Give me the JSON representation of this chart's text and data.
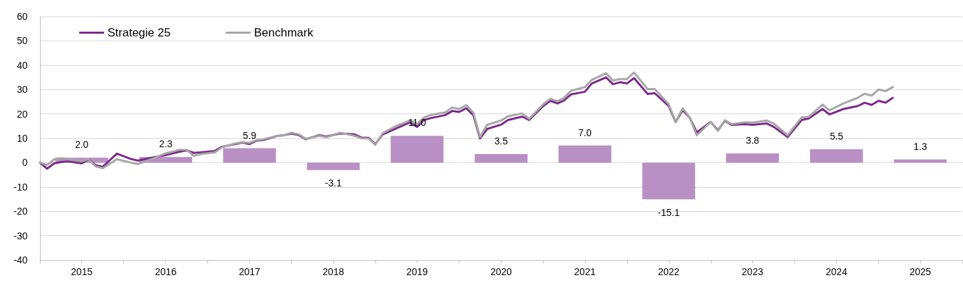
{
  "chart_data": {
    "type": "bar",
    "xlim": [
      "2014-12",
      "2025-12"
    ],
    "xticks": [
      {
        "value": "2014-12",
        "label": null
      },
      {
        "value": "2015-06",
        "label": "2015"
      },
      {
        "value": "2015-12",
        "label": null
      },
      {
        "value": "2016-06",
        "label": "2016"
      },
      {
        "value": "2016-12",
        "label": null
      },
      {
        "value": "2017-06",
        "label": "2017"
      },
      {
        "value": "2017-12",
        "label": null
      },
      {
        "value": "2018-06",
        "label": "2018"
      },
      {
        "value": "2018-12",
        "label": null
      },
      {
        "value": "2019-06",
        "label": "2019"
      },
      {
        "value": "2019-12",
        "label": null
      },
      {
        "value": "2020-06",
        "label": "2020"
      },
      {
        "value": "2020-12",
        "label": null
      },
      {
        "value": "2021-06",
        "label": "2021"
      },
      {
        "value": "2021-12",
        "label": null
      },
      {
        "value": "2022-06",
        "label": "2022"
      },
      {
        "value": "2022-12",
        "label": null
      },
      {
        "value": "2023-06",
        "label": "2023"
      },
      {
        "value": "2023-12",
        "label": null
      },
      {
        "value": "2024-06",
        "label": "2024"
      },
      {
        "value": "2024-12",
        "label": null
      },
      {
        "value": "2025-06",
        "label": "2025"
      },
      {
        "value": "2025-12",
        "label": null
      }
    ],
    "ylim": [
      -40,
      60
    ],
    "yticks": [
      -40,
      -30,
      -20,
      -10,
      0,
      10,
      20,
      30,
      40,
      50,
      60
    ],
    "grid": "y",
    "legend": "top left",
    "marker": "none",
    "line_style": "solid",
    "series": [
      {
        "color": "#b990c4",
        "x": [
          "2015-06",
          "2016-06",
          "2017-06",
          "2018-06",
          "2019-06",
          "2020-06",
          "2021-06",
          "2022-06",
          "2023-06",
          "2024-06",
          "2025-06"
        ],
        "values": [
          2.0,
          2.3,
          5.9,
          -3.1,
          11.0,
          3.5,
          7.0,
          -15.1,
          3.8,
          5.5,
          1.3
        ],
        "value_labels": [
          "2.0",
          "2.3",
          "5.9",
          "-3.1",
          "11.0",
          "3.5",
          "7.0",
          "-15.1",
          "3.8",
          "5.5",
          "1.3"
        ]
      },
      {
        "type": "line",
        "name": "Strategie 25",
        "color": "#7b2a8a",
        "x": [
          "2014-12",
          "2015-01",
          "2015-02",
          "2015-03",
          "2015-04",
          "2015-06",
          "2015-07",
          "2015-08",
          "2015-09",
          "2015-11",
          "2016-01",
          "2016-02",
          "2016-04",
          "2016-06",
          "2016-08",
          "2016-09",
          "2016-10",
          "2016-11",
          "2017-01",
          "2017-02",
          "2017-04",
          "2017-05",
          "2017-06",
          "2017-07",
          "2017-08",
          "2017-10",
          "2017-11",
          "2017-12",
          "2018-01",
          "2018-02",
          "2018-04",
          "2018-05",
          "2018-07",
          "2018-09",
          "2018-10",
          "2018-11",
          "2018-12",
          "2019-01",
          "2019-03",
          "2019-05",
          "2019-06",
          "2019-07",
          "2019-08",
          "2019-10",
          "2019-11",
          "2019-12",
          "2020-01",
          "2020-02",
          "2020-03",
          "2020-04",
          "2020-06",
          "2020-07",
          "2020-09",
          "2020-10",
          "2020-12",
          "2021-01",
          "2021-02",
          "2021-03",
          "2021-04",
          "2021-06",
          "2021-07",
          "2021-09",
          "2021-10",
          "2021-11",
          "2021-12",
          "2022-01",
          "2022-03",
          "2022-04",
          "2022-06",
          "2022-07",
          "2022-08",
          "2022-09",
          "2022-10",
          "2022-12",
          "2023-01",
          "2023-02",
          "2023-03",
          "2023-05",
          "2023-06",
          "2023-08",
          "2023-09",
          "2023-11",
          "2024-01",
          "2024-02",
          "2024-04",
          "2024-05",
          "2024-07",
          "2024-09",
          "2024-10",
          "2024-11",
          "2024-12",
          "2025-01",
          "2025-02"
        ],
        "values": [
          0,
          -2.5,
          -0.3,
          0.2,
          0.5,
          -0.3,
          1.4,
          -1.1,
          -1.7,
          3.7,
          1.5,
          0.8,
          2.0,
          3.1,
          4.5,
          5.0,
          4.0,
          4.2,
          4.8,
          6.5,
          7.6,
          8.2,
          7.6,
          9.0,
          9.3,
          11.0,
          11.3,
          11.9,
          11.3,
          9.6,
          11.3,
          10.7,
          12.0,
          11.6,
          10.3,
          10.2,
          7.6,
          11.5,
          14.0,
          16.5,
          14.7,
          17.5,
          18.3,
          19.5,
          21.2,
          20.8,
          22.3,
          19.5,
          9.9,
          13.8,
          15.6,
          17.5,
          18.9,
          17.5,
          23.2,
          25.4,
          24.3,
          25.4,
          28.0,
          29.1,
          32.5,
          35.0,
          32.2,
          33.0,
          32.5,
          34.7,
          28.2,
          28.5,
          23.2,
          16.7,
          21.5,
          18.4,
          12.4,
          16.7,
          13.3,
          17.2,
          15.5,
          15.8,
          15.5,
          16.1,
          14.7,
          10.5,
          17.5,
          18.1,
          22.0,
          19.8,
          22.0,
          23.2,
          24.6,
          23.7,
          25.4,
          24.6,
          26.6
        ]
      },
      {
        "type": "line",
        "name": "Benchmark",
        "color": "#a6a6a6",
        "x": [
          "2014-12",
          "2015-01",
          "2015-02",
          "2015-03",
          "2015-04",
          "2015-06",
          "2015-07",
          "2015-08",
          "2015-09",
          "2015-11",
          "2016-01",
          "2016-02",
          "2016-04",
          "2016-06",
          "2016-08",
          "2016-09",
          "2016-10",
          "2016-11",
          "2017-01",
          "2017-02",
          "2017-04",
          "2017-05",
          "2017-06",
          "2017-07",
          "2017-08",
          "2017-10",
          "2017-11",
          "2017-12",
          "2018-01",
          "2018-02",
          "2018-04",
          "2018-05",
          "2018-07",
          "2018-09",
          "2018-10",
          "2018-11",
          "2018-12",
          "2019-01",
          "2019-03",
          "2019-05",
          "2019-06",
          "2019-07",
          "2019-08",
          "2019-10",
          "2019-11",
          "2019-12",
          "2020-01",
          "2020-02",
          "2020-03",
          "2020-04",
          "2020-06",
          "2020-07",
          "2020-09",
          "2020-10",
          "2020-12",
          "2021-01",
          "2021-02",
          "2021-03",
          "2021-04",
          "2021-06",
          "2021-07",
          "2021-09",
          "2021-10",
          "2021-11",
          "2021-12",
          "2022-01",
          "2022-03",
          "2022-04",
          "2022-06",
          "2022-07",
          "2022-08",
          "2022-09",
          "2022-10",
          "2022-12",
          "2023-01",
          "2023-02",
          "2023-03",
          "2023-05",
          "2023-06",
          "2023-08",
          "2023-09",
          "2023-11",
          "2024-01",
          "2024-02",
          "2024-04",
          "2024-05",
          "2024-07",
          "2024-09",
          "2024-10",
          "2024-11",
          "2024-12",
          "2025-01",
          "2025-02"
        ],
        "values": [
          0,
          -1,
          1.3,
          1.8,
          1.5,
          0.5,
          1.4,
          -1.6,
          -2.3,
          1.4,
          0,
          -0.6,
          1.5,
          3.8,
          5.3,
          5.2,
          2.8,
          3.5,
          4.2,
          6.3,
          7.9,
          8.4,
          8.1,
          9.2,
          9.6,
          11.0,
          11.3,
          12.3,
          11.6,
          9.8,
          11.0,
          10.4,
          12.3,
          11.0,
          10.0,
          9.9,
          7.3,
          12.0,
          15.0,
          17.3,
          16.0,
          18.5,
          19.6,
          20.6,
          22.6,
          22.0,
          23.6,
          20.5,
          10.5,
          15.5,
          17.3,
          19.0,
          20.2,
          18.0,
          23.9,
          26.2,
          25.2,
          26.5,
          29.5,
          31.0,
          34.0,
          36.7,
          33.7,
          34.3,
          34.3,
          37.0,
          30.2,
          30.2,
          24.0,
          16.7,
          22.3,
          18.5,
          11.2,
          16.7,
          13.0,
          17.4,
          15.8,
          16.6,
          16.4,
          17.3,
          16.1,
          11.2,
          18.5,
          18.8,
          23.8,
          21.5,
          24.3,
          26.6,
          28.3,
          27.5,
          30.0,
          29.4,
          31.0
        ]
      }
    ]
  }
}
